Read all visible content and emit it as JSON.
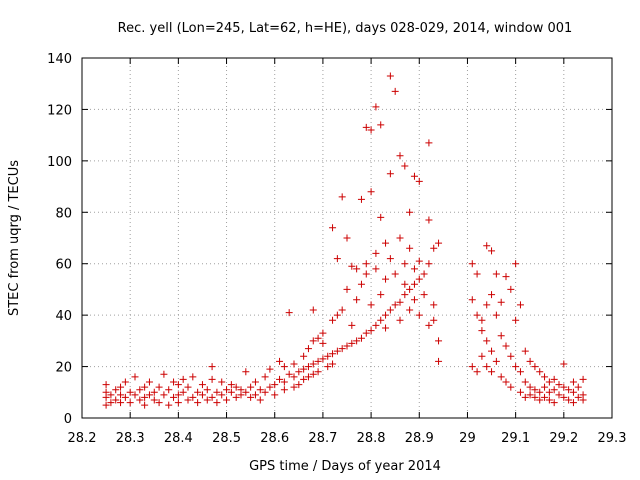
{
  "chart_data": {
    "type": "scatter",
    "title": "Rec. yell (Lon=245, Lat=62, h=HE), days 028-029, 2014, window 001",
    "xlabel": "GPS time / Days of year 2014",
    "ylabel": "STEC from uqrg / TECUs",
    "xlim": [
      28.2,
      29.3
    ],
    "ylim": [
      0,
      140
    ],
    "xticks": [
      "28.2",
      "28.3",
      "28.4",
      "28.5",
      "28.6",
      "28.7",
      "28.8",
      "28.9",
      "29",
      "29.1",
      "29.2",
      "29.3"
    ],
    "yticks": [
      "0",
      "20",
      "40",
      "60",
      "80",
      "100",
      "120",
      "140"
    ],
    "grid": true,
    "marker": "plus",
    "series": [
      {
        "color": "#cc0000",
        "points": [
          [
            28.25,
            5
          ],
          [
            28.25,
            8
          ],
          [
            28.25,
            10
          ],
          [
            28.25,
            13
          ],
          [
            28.26,
            6
          ],
          [
            28.26,
            9
          ],
          [
            28.27,
            7
          ],
          [
            28.27,
            11
          ],
          [
            28.28,
            6
          ],
          [
            28.28,
            9
          ],
          [
            28.28,
            12
          ],
          [
            28.29,
            8
          ],
          [
            28.29,
            14
          ],
          [
            28.3,
            6
          ],
          [
            28.3,
            10
          ],
          [
            28.31,
            9
          ],
          [
            28.31,
            16
          ],
          [
            28.32,
            7
          ],
          [
            28.32,
            11
          ],
          [
            28.33,
            5
          ],
          [
            28.33,
            8
          ],
          [
            28.33,
            12
          ],
          [
            28.34,
            9
          ],
          [
            28.34,
            14
          ],
          [
            28.35,
            7
          ],
          [
            28.35,
            10
          ],
          [
            28.36,
            6
          ],
          [
            28.36,
            12
          ],
          [
            28.37,
            17
          ],
          [
            28.37,
            9
          ],
          [
            28.38,
            5
          ],
          [
            28.38,
            11
          ],
          [
            28.39,
            8
          ],
          [
            28.39,
            14
          ],
          [
            28.4,
            6
          ],
          [
            28.4,
            9
          ],
          [
            28.4,
            13
          ],
          [
            28.41,
            10
          ],
          [
            28.41,
            15
          ],
          [
            28.42,
            7
          ],
          [
            28.42,
            12
          ],
          [
            28.43,
            8
          ],
          [
            28.43,
            16
          ],
          [
            28.44,
            6
          ],
          [
            28.44,
            10
          ],
          [
            28.45,
            9
          ],
          [
            28.45,
            13
          ],
          [
            28.46,
            7
          ],
          [
            28.46,
            11
          ],
          [
            28.47,
            8
          ],
          [
            28.47,
            15
          ],
          [
            28.47,
            20
          ],
          [
            28.48,
            6
          ],
          [
            28.48,
            10
          ],
          [
            28.49,
            9
          ],
          [
            28.49,
            14
          ],
          [
            28.5,
            7
          ],
          [
            28.5,
            11
          ],
          [
            28.51,
            10
          ],
          [
            28.51,
            13
          ],
          [
            28.52,
            8
          ],
          [
            28.52,
            12
          ],
          [
            28.53,
            9
          ],
          [
            28.53,
            11
          ],
          [
            28.54,
            10
          ],
          [
            28.54,
            18
          ],
          [
            28.55,
            8
          ],
          [
            28.55,
            12
          ],
          [
            28.56,
            9
          ],
          [
            28.56,
            14
          ],
          [
            28.57,
            7
          ],
          [
            28.57,
            11
          ],
          [
            28.58,
            10
          ],
          [
            28.58,
            16
          ],
          [
            28.59,
            12
          ],
          [
            28.59,
            19
          ],
          [
            28.6,
            13
          ],
          [
            28.6,
            9
          ],
          [
            28.61,
            15
          ],
          [
            28.61,
            22
          ],
          [
            28.62,
            14
          ],
          [
            28.62,
            20
          ],
          [
            28.62,
            11
          ],
          [
            28.63,
            17
          ],
          [
            28.63,
            41
          ],
          [
            28.64,
            16
          ],
          [
            28.64,
            21
          ],
          [
            28.64,
            12
          ],
          [
            28.65,
            18
          ],
          [
            28.65,
            13
          ],
          [
            28.66,
            19
          ],
          [
            28.66,
            24
          ],
          [
            28.66,
            15
          ],
          [
            28.67,
            20
          ],
          [
            28.67,
            27
          ],
          [
            28.67,
            16
          ],
          [
            28.68,
            21
          ],
          [
            28.68,
            30
          ],
          [
            28.68,
            42
          ],
          [
            28.68,
            17
          ],
          [
            28.69,
            22
          ],
          [
            28.69,
            31
          ],
          [
            28.69,
            18
          ],
          [
            28.7,
            23
          ],
          [
            28.7,
            29
          ],
          [
            28.7,
            33
          ],
          [
            28.71,
            24
          ],
          [
            28.71,
            20
          ],
          [
            28.72,
            25
          ],
          [
            28.72,
            38
          ],
          [
            28.72,
            74
          ],
          [
            28.72,
            21
          ],
          [
            28.73,
            26
          ],
          [
            28.73,
            40
          ],
          [
            28.73,
            62
          ],
          [
            28.74,
            27
          ],
          [
            28.74,
            86
          ],
          [
            28.74,
            42
          ],
          [
            28.75,
            28
          ],
          [
            28.75,
            70
          ],
          [
            28.75,
            50
          ],
          [
            28.76,
            29
          ],
          [
            28.76,
            59
          ],
          [
            28.76,
            36
          ],
          [
            28.77,
            30
          ],
          [
            28.77,
            58
          ],
          [
            28.77,
            46
          ],
          [
            28.78,
            31
          ],
          [
            28.78,
            85
          ],
          [
            28.78,
            52
          ],
          [
            28.79,
            33
          ],
          [
            28.79,
            60
          ],
          [
            28.79,
            56
          ],
          [
            28.79,
            113
          ],
          [
            28.8,
            34
          ],
          [
            28.8,
            88
          ],
          [
            28.8,
            112
          ],
          [
            28.8,
            44
          ],
          [
            28.81,
            36
          ],
          [
            28.81,
            64
          ],
          [
            28.81,
            58
          ],
          [
            28.81,
            121
          ],
          [
            28.82,
            38
          ],
          [
            28.82,
            78
          ],
          [
            28.82,
            114
          ],
          [
            28.82,
            48
          ],
          [
            28.83,
            40
          ],
          [
            28.83,
            68
          ],
          [
            28.83,
            54
          ],
          [
            28.83,
            35
          ],
          [
            28.84,
            42
          ],
          [
            28.84,
            95
          ],
          [
            28.84,
            133
          ],
          [
            28.84,
            62
          ],
          [
            28.85,
            44
          ],
          [
            28.85,
            56
          ],
          [
            28.85,
            127
          ],
          [
            28.86,
            45
          ],
          [
            28.86,
            102
          ],
          [
            28.86,
            70
          ],
          [
            28.86,
            38
          ],
          [
            28.87,
            48
          ],
          [
            28.87,
            98
          ],
          [
            28.87,
            60
          ],
          [
            28.87,
            52
          ],
          [
            28.88,
            50
          ],
          [
            28.88,
            80
          ],
          [
            28.88,
            66
          ],
          [
            28.88,
            42
          ],
          [
            28.89,
            52
          ],
          [
            28.89,
            94
          ],
          [
            28.89,
            58
          ],
          [
            28.89,
            46
          ],
          [
            28.9,
            54
          ],
          [
            28.9,
            92
          ],
          [
            28.9,
            61
          ],
          [
            28.9,
            40
          ],
          [
            28.91,
            56
          ],
          [
            28.91,
            48
          ],
          [
            28.92,
            107
          ],
          [
            28.92,
            36
          ],
          [
            28.92,
            77
          ],
          [
            28.92,
            60
          ],
          [
            28.93,
            44
          ],
          [
            28.93,
            66
          ],
          [
            28.93,
            38
          ],
          [
            28.94,
            68
          ],
          [
            28.94,
            30
          ],
          [
            28.94,
            22
          ],
          [
            29.01,
            60
          ],
          [
            29.01,
            46
          ],
          [
            29.01,
            20
          ],
          [
            29.02,
            40
          ],
          [
            29.02,
            56
          ],
          [
            29.02,
            18
          ],
          [
            29.03,
            38
          ],
          [
            29.03,
            34
          ],
          [
            29.03,
            24
          ],
          [
            29.04,
            67
          ],
          [
            29.04,
            44
          ],
          [
            29.04,
            30
          ],
          [
            29.04,
            20
          ],
          [
            29.05,
            65
          ],
          [
            29.05,
            48
          ],
          [
            29.05,
            26
          ],
          [
            29.05,
            18
          ],
          [
            29.06,
            56
          ],
          [
            29.06,
            40
          ],
          [
            29.06,
            22
          ],
          [
            29.07,
            45
          ],
          [
            29.07,
            32
          ],
          [
            29.07,
            16
          ],
          [
            29.08,
            55
          ],
          [
            29.08,
            28
          ],
          [
            29.08,
            14
          ],
          [
            29.09,
            50
          ],
          [
            29.09,
            24
          ],
          [
            29.09,
            12
          ],
          [
            29.1,
            60
          ],
          [
            29.1,
            38
          ],
          [
            29.1,
            20
          ],
          [
            29.11,
            44
          ],
          [
            29.11,
            18
          ],
          [
            29.11,
            10
          ],
          [
            29.12,
            26
          ],
          [
            29.12,
            14
          ],
          [
            29.12,
            8
          ],
          [
            29.13,
            22
          ],
          [
            29.13,
            12
          ],
          [
            29.13,
            9
          ],
          [
            29.14,
            20
          ],
          [
            29.14,
            11
          ],
          [
            29.14,
            8
          ],
          [
            29.15,
            18
          ],
          [
            29.15,
            10
          ],
          [
            29.15,
            7
          ],
          [
            29.16,
            16
          ],
          [
            29.16,
            12
          ],
          [
            29.16,
            8
          ],
          [
            29.17,
            14
          ],
          [
            29.17,
            10
          ],
          [
            29.17,
            7
          ],
          [
            29.18,
            15
          ],
          [
            29.18,
            11
          ],
          [
            29.18,
            6
          ],
          [
            29.19,
            13
          ],
          [
            29.19,
            9
          ],
          [
            29.2,
            21
          ],
          [
            29.2,
            12
          ],
          [
            29.2,
            8
          ],
          [
            29.21,
            11
          ],
          [
            29.21,
            7
          ],
          [
            29.22,
            14
          ],
          [
            29.22,
            10
          ],
          [
            29.22,
            6
          ],
          [
            29.23,
            12
          ],
          [
            29.23,
            8
          ],
          [
            29.24,
            9
          ],
          [
            29.24,
            7
          ],
          [
            29.24,
            15
          ]
        ]
      }
    ]
  }
}
